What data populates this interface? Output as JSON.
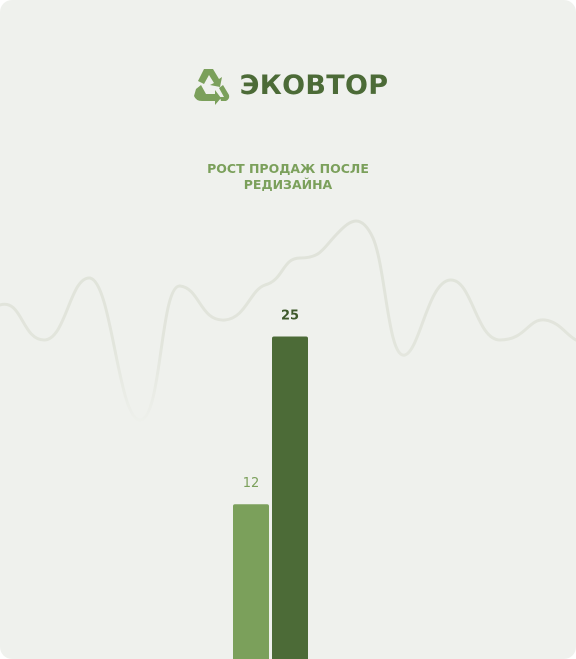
{
  "brand": {
    "name": "ЭКОВТОР",
    "icon": "recycle-icon",
    "color": "#4c6b37"
  },
  "chart_data": {
    "type": "bar",
    "title_lines": [
      "РОСТ ПРОДАЖ ПОСЛЕ",
      "РЕДИЗАЙНА"
    ],
    "categories": [
      "",
      ""
    ],
    "values": [
      12,
      25
    ],
    "data_labels": [
      "12",
      "25"
    ],
    "colors": [
      "#7ba05b",
      "#4c6b37"
    ],
    "label_colors": [
      "#7ba05b",
      "#3f5a2c"
    ],
    "xlabel": "",
    "ylabel": "",
    "grid": false,
    "legend": "none",
    "decoration": "wave-line"
  }
}
